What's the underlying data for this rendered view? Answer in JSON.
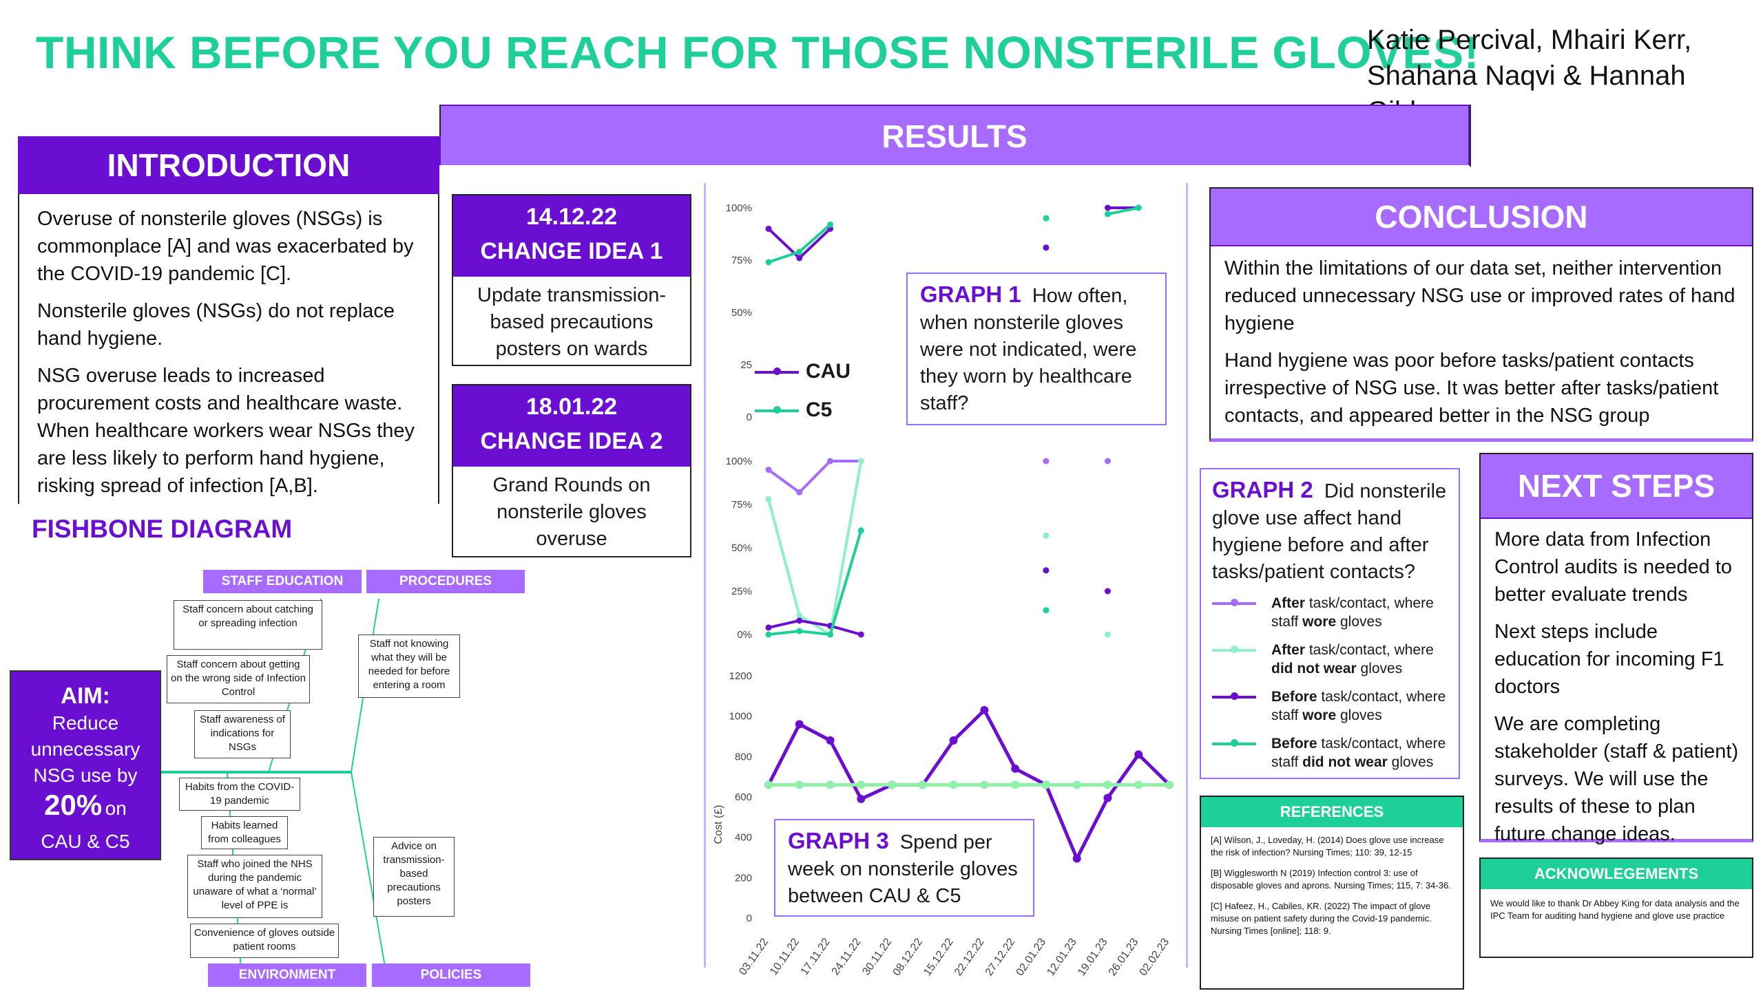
{
  "poster": {
    "title": "THINK BEFORE YOU REACH FOR THOSE NONSTERILE GLOVES!",
    "authors_line1": "Katie Percival, Mhairi Kerr,",
    "authors_line2": "Shahana Naqvi & Hannah Gibbs"
  },
  "introduction": {
    "heading": "INTRODUCTION",
    "p1": "Overuse of nonsterile gloves (NSGs) is commonplace [A] and was exacerbated by the COVID-19 pandemic [C].",
    "p2": "Nonsterile gloves (NSGs) do not replace hand hygiene.",
    "p3": "NSG overuse leads to increased procurement costs and healthcare waste. When healthcare workers wear NSGs they are less likely to perform hand hygiene, risking spread of infection [A,B]."
  },
  "fishbone": {
    "heading": "FISHBONE DIAGRAM",
    "categories": {
      "staff_education": "STAFF EDUCATION",
      "procedures": "PROCEDURES",
      "environment": "ENVIRONMENT",
      "policies": "POLICIES"
    },
    "causes": {
      "c1": "Staff concern about catching or spreading infection",
      "c2": "Staff concern about getting on the wrong side of Infection Control",
      "c3": "Staff awareness of indications for NSGs",
      "c4": "Staff not knowing what they will be needed for before entering a room",
      "c5": "Habits from the COVID-19 pandemic",
      "c6": "Habits learned from colleagues",
      "c7": "Staff who joined the NHS during the pandemic unaware of what a ‘normal’ level of PPE is",
      "c8": "Convenience of gloves outside patient rooms",
      "c9": "Advice on transmission-based precautions posters"
    }
  },
  "aim": {
    "label": "AIM:",
    "line1": "Reduce",
    "line2": "unnecessary",
    "line3": "NSG use by",
    "percent": "20%",
    "on": "on",
    "units": "CAU & C5"
  },
  "results": {
    "heading": "RESULTS",
    "change1": {
      "date": "14.12.22",
      "title": "CHANGE IDEA 1",
      "text": "Update transmission-based precautions posters on wards"
    },
    "change2": {
      "date": "18.01.22",
      "title": "CHANGE IDEA 2",
      "text": "Grand Rounds on nonsterile gloves overuse"
    }
  },
  "graph1_card": {
    "label": "GRAPH 1",
    "text": "How often, when nonsterile gloves were not indicated, were they worn by healthcare staff?"
  },
  "graph2_card": {
    "label": "GRAPH 2",
    "text": "Did nonsterile glove use affect hand hygiene before and after tasks/patient contacts?",
    "legend": [
      {
        "a": "After",
        "b": " task/contact, where staff ",
        "c": "wore",
        "d": " gloves",
        "color": "#a76cff"
      },
      {
        "a": "After",
        "b": " task/contact, where ",
        "c": "did not wear",
        "d": " gloves",
        "color": "#8ff0c8"
      },
      {
        "a": "Before",
        "b": " task/contact, where staff ",
        "c": "wore",
        "d": " gloves",
        "color": "#6a0fd1"
      },
      {
        "a": "Before",
        "b": " task/contact, where staff ",
        "c": "did not wear",
        "d": " gloves",
        "color": "#1fcf9a"
      }
    ]
  },
  "graph3_card": {
    "label": "GRAPH 3",
    "text1": "Spend per",
    "text2": "week on nonsterile gloves between CAU & C5"
  },
  "conclusion": {
    "heading": "CONCLUSION",
    "p1": "Within the limitations of our data set, neither intervention reduced unnecessary NSG use or improved rates of hand hygiene",
    "p2": "Hand hygiene was poor before tasks/patient contacts irrespective of NSG use. It was better after tasks/patient contacts, and appeared better in the NSG group"
  },
  "next_steps": {
    "heading": "NEXT STEPS",
    "p1": "More data from Infection Control audits is needed to better evaluate trends",
    "p2": "Next steps include education for incoming F1 doctors",
    "p3": "We are completing stakeholder (staff & patient) surveys. We will use the results of these to plan future change ideas."
  },
  "references": {
    "heading": "REFERENCES",
    "r1": "[A] Wilson, J., Loveday, H. (2014) Does glove use increase the risk of infection? Nursing Times; 110: 39, 12-15",
    "r2": "[B] Wigglesworth N (2019) Infection control 3: use of disposable gloves and aprons. Nursing Times; 115, 7: 34-36.",
    "r3": "[C] Hafeez, H., Cabiles, KR. (2022) The impact of glove misuse on patient safety during the Covid-19 pandemic. Nursing Times [online]; 118: 9."
  },
  "acknowledgements": {
    "heading": "ACKNOWLEGEMENTS",
    "text": "We would like to thank Dr Abbey King for data analysis and the IPC Team for auditing hand hygiene and glove use practice"
  },
  "chart_data": [
    {
      "type": "line",
      "id": "graph1",
      "ylim": [
        0,
        100
      ],
      "yticks": [
        "100%",
        "75%",
        "50%",
        "25",
        "0"
      ],
      "x": [
        "03.11.22",
        "10.11.22",
        "17.11.22",
        "24.11.22",
        "30.11.22",
        "08.12.22",
        "15.12.22",
        "22.12.22",
        "27.12.22",
        "02.01.23",
        "12.01.23",
        "19.01.23",
        "26.01.23",
        "02.02.23"
      ],
      "series": [
        {
          "name": "CAU",
          "color": "#6a0fd1",
          "values": [
            90,
            76,
            90,
            null,
            null,
            null,
            null,
            null,
            null,
            81,
            null,
            100,
            100,
            null
          ]
        },
        {
          "name": "C5",
          "color": "#1fcf9a",
          "values": [
            74,
            79,
            92,
            null,
            null,
            null,
            null,
            null,
            null,
            95,
            null,
            97,
            100,
            null
          ]
        }
      ]
    },
    {
      "type": "line",
      "id": "graph2",
      "ylim": [
        0,
        100
      ],
      "yticks": [
        "100%",
        "75%",
        "50%",
        "25%",
        "0%"
      ],
      "x": [
        "03.11.22",
        "10.11.22",
        "17.11.22",
        "24.11.22",
        "30.11.22",
        "08.12.22",
        "15.12.22",
        "22.12.22",
        "27.12.22",
        "02.01.23",
        "12.01.23",
        "19.01.23",
        "26.01.23",
        "02.02.23"
      ],
      "series": [
        {
          "color": "#a76cff",
          "values": [
            95,
            82,
            100,
            100,
            null,
            null,
            null,
            null,
            null,
            100,
            null,
            100,
            null,
            null
          ]
        },
        {
          "color": "#8ff0c8",
          "values": [
            78,
            11,
            0,
            100,
            null,
            null,
            null,
            null,
            null,
            57,
            null,
            0,
            null,
            null
          ]
        },
        {
          "color": "#6a0fd1",
          "values": [
            4,
            8,
            5,
            0,
            null,
            null,
            null,
            null,
            null,
            37,
            null,
            25,
            null,
            null
          ]
        },
        {
          "color": "#1fcf9a",
          "values": [
            0,
            2,
            0,
            60,
            null,
            null,
            null,
            null,
            null,
            14,
            null,
            null,
            null,
            null
          ]
        }
      ]
    },
    {
      "type": "line",
      "id": "graph3",
      "ylabel": "Cost (£)",
      "ylim": [
        0,
        1200
      ],
      "yticks": [
        "1200",
        "1000",
        "800",
        "600",
        "400",
        "200",
        "0"
      ],
      "x": [
        "03.11.22",
        "10.11.22",
        "17.11.22",
        "24.11.22",
        "30.11.22",
        "08.12.22",
        "15.12.22",
        "22.12.22",
        "27.12.22",
        "02.01.23",
        "12.01.23",
        "19.01.23",
        "26.01.23",
        "02.02.23"
      ],
      "series": [
        {
          "color": "#6a0fd1",
          "values": [
            660,
            960,
            880,
            590,
            660,
            660,
            880,
            1030,
            740,
            660,
            295,
            595,
            810,
            660
          ]
        },
        {
          "color": "#8ff0a8",
          "values": [
            660,
            660,
            660,
            660,
            660,
            660,
            660,
            660,
            660,
            660,
            660,
            660,
            660,
            660
          ]
        }
      ]
    }
  ]
}
